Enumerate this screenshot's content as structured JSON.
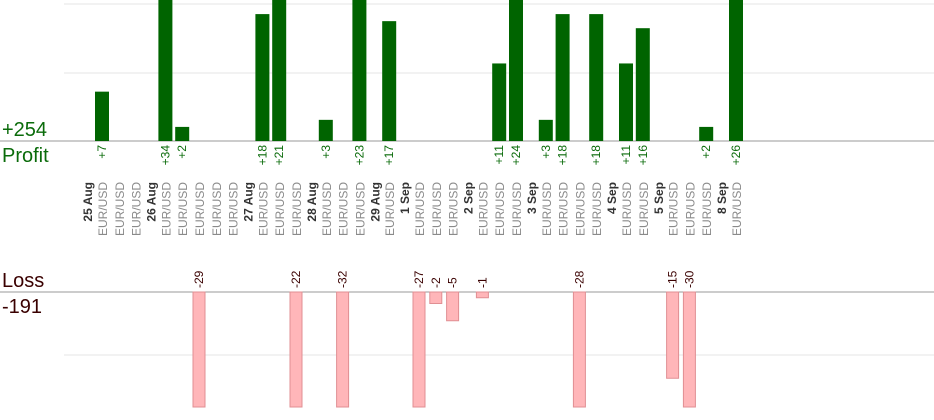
{
  "summary": {
    "profit_value": "+254",
    "profit_label": "Profit",
    "loss_label": "Loss",
    "loss_value": "-191"
  },
  "colors": {
    "profit_bar": "#006400",
    "profit_text": "#0a6b0a",
    "loss_bar_fill": "#ffb6b9",
    "loss_bar_stroke": "#e08f93",
    "loss_text": "#3a0000",
    "date_text": "#333333",
    "pair_text": "#8a8a8a",
    "grid": "#e6e6e6",
    "axis": "#999999"
  },
  "chart_data": {
    "type": "bar",
    "title": "",
    "symbol": "EUR/USD",
    "grid": true,
    "profit_scale_max": 20,
    "loss_scale_max": 20,
    "days": [
      {
        "date": "25 Aug",
        "trades": [
          7,
          0,
          0
        ]
      },
      {
        "date": "26 Aug",
        "trades": [
          34,
          2,
          -29,
          0,
          0
        ]
      },
      {
        "date": "27 Aug",
        "trades": [
          18,
          21,
          -22
        ]
      },
      {
        "date": "28 Aug",
        "trades": [
          3,
          -32,
          23
        ]
      },
      {
        "date": "29 Aug",
        "trades": [
          17
        ]
      },
      {
        "date": "1 Sep",
        "trades": [
          -27,
          -2,
          -5
        ]
      },
      {
        "date": "2 Sep",
        "trades": [
          -1,
          11,
          24
        ]
      },
      {
        "date": "3 Sep",
        "trades": [
          3,
          18,
          -28,
          18
        ]
      },
      {
        "date": "4 Sep",
        "trades": [
          11,
          16
        ]
      },
      {
        "date": "5 Sep",
        "trades": [
          -15,
          -30,
          2
        ]
      },
      {
        "date": "8 Sep",
        "trades": [
          26
        ]
      }
    ]
  }
}
